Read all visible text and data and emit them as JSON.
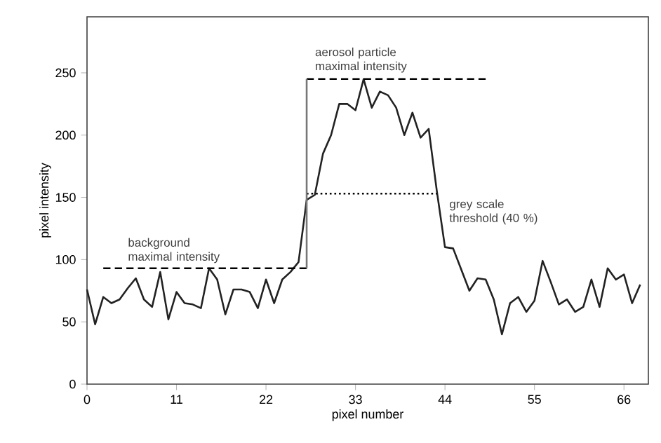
{
  "chart_data": {
    "type": "line",
    "xlabel": "pixel number",
    "ylabel": "pixel intensity",
    "xlim": [
      0,
      69
    ],
    "ylim": [
      0,
      295
    ],
    "xticks": [
      0,
      11,
      22,
      33,
      44,
      55,
      66
    ],
    "yticks": [
      0,
      50,
      100,
      150,
      200,
      250
    ],
    "grid": false,
    "marker": "none",
    "series": [
      {
        "color": "#222222",
        "line_style": "solid",
        "x": [
          0,
          1,
          2,
          3,
          4,
          5,
          6,
          7,
          8,
          9,
          10,
          11,
          12,
          13,
          14,
          15,
          16,
          17,
          18,
          19,
          20,
          21,
          22,
          23,
          24,
          25,
          26,
          27,
          28,
          29,
          30,
          31,
          32,
          33,
          34,
          35,
          36,
          37,
          38,
          39,
          40,
          41,
          42,
          43,
          44,
          45,
          46,
          47,
          48,
          49,
          50,
          51,
          52,
          53,
          54,
          55,
          56,
          57,
          58,
          59,
          60,
          61,
          62,
          63,
          64,
          65,
          66,
          67,
          68
        ],
        "values": [
          76,
          48,
          70,
          65,
          68,
          77,
          85,
          68,
          62,
          90,
          52,
          74,
          65,
          64,
          61,
          93,
          84,
          56,
          76,
          76,
          74,
          61,
          84,
          65,
          84,
          90,
          98,
          148,
          152,
          185,
          200,
          225,
          225,
          220,
          245,
          222,
          235,
          232,
          222,
          200,
          218,
          198,
          205,
          155,
          110,
          109,
          92,
          75,
          85,
          84,
          68,
          40,
          65,
          70,
          58,
          67,
          99,
          82,
          64,
          68,
          58,
          62,
          84,
          62,
          93,
          84,
          88,
          65,
          80
        ]
      },
      {
        "color": "#000000",
        "line_style": "dashed",
        "x": [
          2,
          27
        ],
        "values": [
          93,
          93
        ]
      },
      {
        "color": "#000000",
        "line_style": "dashed",
        "x": [
          27,
          49
        ],
        "values": [
          245,
          245
        ]
      },
      {
        "color": "#000000",
        "line_style": "dotted",
        "x": [
          27,
          43
        ],
        "values": [
          153,
          153
        ]
      },
      {
        "color": "#777777",
        "line_style": "solid",
        "x": [
          27,
          27
        ],
        "values": [
          93,
          245
        ]
      }
    ],
    "annotations": [
      {
        "text": "background maximal intensity",
        "x": 5,
        "y": 97
      },
      {
        "text": "aerosol particle maximal intensity",
        "x": 28,
        "y": 250
      },
      {
        "text": "grey scale threshold (40 %)",
        "x": 44.5,
        "y": 128
      }
    ]
  }
}
